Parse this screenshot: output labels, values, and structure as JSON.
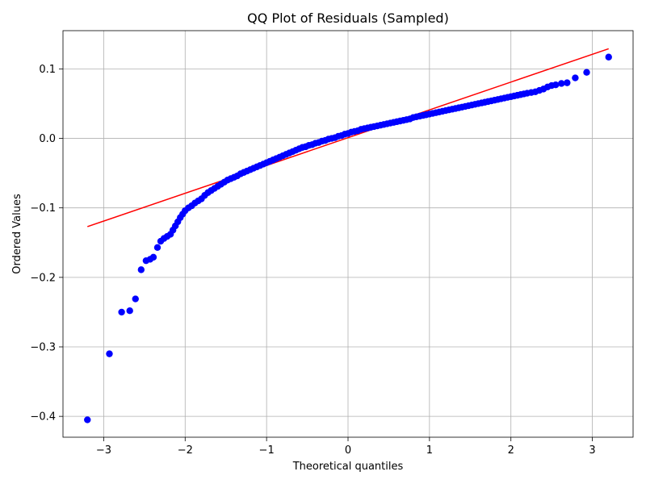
{
  "chart_data": {
    "type": "scatter",
    "title": "QQ Plot of Residuals (Sampled)",
    "xlabel": "Theoretical quantiles",
    "ylabel": "Ordered Values",
    "xlim": [
      -3.5,
      3.5
    ],
    "ylim": [
      -0.43,
      0.155
    ],
    "grid": true,
    "xticks": [
      -3,
      -2,
      -1,
      0,
      1,
      2,
      3
    ],
    "xtick_labels": [
      "−3",
      "−2",
      "−1",
      "0",
      "1",
      "2",
      "3"
    ],
    "yticks": [
      0.1,
      0.0,
      -0.1,
      -0.2,
      -0.3,
      -0.4
    ],
    "ytick_labels": [
      "0.1",
      "0.0",
      "−0.1",
      "−0.2",
      "−0.3",
      "−0.4"
    ],
    "colors": {
      "points": "#0000ff",
      "fit_line": "#ff0000"
    },
    "series": [
      {
        "role": "points",
        "marker": "circle",
        "points": [
          [
            -3.2,
            -0.405
          ],
          [
            -2.93,
            -0.31
          ],
          [
            -2.78,
            -0.25
          ],
          [
            -2.68,
            -0.248
          ],
          [
            -2.61,
            -0.231
          ],
          [
            -2.54,
            -0.189
          ],
          [
            -2.48,
            -0.176
          ],
          [
            -2.43,
            -0.174
          ],
          [
            -2.39,
            -0.171
          ],
          [
            -2.34,
            -0.157
          ],
          [
            -2.3,
            -0.148
          ],
          [
            -2.26,
            -0.144
          ],
          [
            -2.22,
            -0.141
          ],
          [
            -2.18,
            -0.138
          ],
          [
            -2.15,
            -0.132
          ],
          [
            -2.12,
            -0.126
          ],
          [
            -2.09,
            -0.12
          ],
          [
            -2.06,
            -0.114
          ],
          [
            -2.03,
            -0.109
          ],
          [
            -2.0,
            -0.104
          ],
          [
            -1.96,
            -0.1
          ],
          [
            -1.92,
            -0.097
          ],
          [
            -1.88,
            -0.093
          ],
          [
            -1.84,
            -0.09
          ],
          [
            -1.8,
            -0.087
          ],
          [
            -1.76,
            -0.082
          ],
          [
            -1.72,
            -0.078
          ],
          [
            -1.68,
            -0.075
          ],
          [
            -1.64,
            -0.072
          ],
          [
            -1.6,
            -0.069
          ],
          [
            -1.56,
            -0.066
          ],
          [
            -1.52,
            -0.063
          ],
          [
            -1.48,
            -0.06
          ],
          [
            -1.44,
            -0.058
          ],
          [
            -1.4,
            -0.056
          ],
          [
            -1.36,
            -0.054
          ],
          [
            -1.32,
            -0.051
          ],
          [
            -1.28,
            -0.049
          ],
          [
            -1.24,
            -0.047
          ],
          [
            -1.2,
            -0.045
          ],
          [
            -1.16,
            -0.043
          ],
          [
            -1.12,
            -0.041
          ],
          [
            -1.08,
            -0.039
          ],
          [
            -1.04,
            -0.037
          ],
          [
            -1.0,
            -0.035
          ],
          [
            -0.96,
            -0.033
          ],
          [
            -0.92,
            -0.031
          ],
          [
            -0.88,
            -0.029
          ],
          [
            -0.84,
            -0.027
          ],
          [
            -0.8,
            -0.025
          ],
          [
            -0.76,
            -0.023
          ],
          [
            -0.72,
            -0.021
          ],
          [
            -0.68,
            -0.019
          ],
          [
            -0.64,
            -0.017
          ],
          [
            -0.6,
            -0.015
          ],
          [
            -0.56,
            -0.013
          ],
          [
            -0.52,
            -0.012
          ],
          [
            -0.48,
            -0.01
          ],
          [
            -0.44,
            -0.009
          ],
          [
            -0.4,
            -0.007
          ],
          [
            -0.36,
            -0.006
          ],
          [
            -0.32,
            -0.004
          ],
          [
            -0.28,
            -0.003
          ],
          [
            -0.24,
            -0.001
          ],
          [
            -0.2,
            0.0
          ],
          [
            -0.16,
            0.001
          ],
          [
            -0.12,
            0.003
          ],
          [
            -0.08,
            0.004
          ],
          [
            -0.04,
            0.006
          ],
          [
            0.0,
            0.007
          ],
          [
            0.04,
            0.009
          ],
          [
            0.08,
            0.01
          ],
          [
            0.12,
            0.011
          ],
          [
            0.16,
            0.013
          ],
          [
            0.2,
            0.014
          ],
          [
            0.24,
            0.015
          ],
          [
            0.28,
            0.016
          ],
          [
            0.32,
            0.017
          ],
          [
            0.36,
            0.018
          ],
          [
            0.4,
            0.019
          ],
          [
            0.44,
            0.02
          ],
          [
            0.48,
            0.021
          ],
          [
            0.52,
            0.022
          ],
          [
            0.56,
            0.023
          ],
          [
            0.6,
            0.024
          ],
          [
            0.64,
            0.025
          ],
          [
            0.68,
            0.026
          ],
          [
            0.72,
            0.027
          ],
          [
            0.76,
            0.028
          ],
          [
            0.8,
            0.03
          ],
          [
            0.84,
            0.031
          ],
          [
            0.88,
            0.032
          ],
          [
            0.92,
            0.033
          ],
          [
            0.96,
            0.034
          ],
          [
            1.0,
            0.035
          ],
          [
            1.04,
            0.036
          ],
          [
            1.08,
            0.037
          ],
          [
            1.12,
            0.038
          ],
          [
            1.16,
            0.039
          ],
          [
            1.2,
            0.04
          ],
          [
            1.24,
            0.041
          ],
          [
            1.28,
            0.042
          ],
          [
            1.32,
            0.043
          ],
          [
            1.36,
            0.044
          ],
          [
            1.4,
            0.045
          ],
          [
            1.44,
            0.046
          ],
          [
            1.48,
            0.047
          ],
          [
            1.52,
            0.048
          ],
          [
            1.56,
            0.049
          ],
          [
            1.6,
            0.05
          ],
          [
            1.64,
            0.051
          ],
          [
            1.68,
            0.052
          ],
          [
            1.72,
            0.053
          ],
          [
            1.76,
            0.054
          ],
          [
            1.8,
            0.055
          ],
          [
            1.84,
            0.056
          ],
          [
            1.88,
            0.057
          ],
          [
            1.92,
            0.058
          ],
          [
            1.96,
            0.059
          ],
          [
            2.0,
            0.06
          ],
          [
            2.04,
            0.061
          ],
          [
            2.08,
            0.062
          ],
          [
            2.12,
            0.063
          ],
          [
            2.16,
            0.064
          ],
          [
            2.2,
            0.065
          ],
          [
            2.25,
            0.066
          ],
          [
            2.3,
            0.067
          ],
          [
            2.35,
            0.069
          ],
          [
            2.4,
            0.071
          ],
          [
            2.45,
            0.074
          ],
          [
            2.5,
            0.076
          ],
          [
            2.55,
            0.077
          ],
          [
            2.62,
            0.079
          ],
          [
            2.69,
            0.08
          ],
          [
            2.79,
            0.087
          ],
          [
            2.93,
            0.095
          ],
          [
            3.2,
            0.117
          ]
        ]
      },
      {
        "role": "fit_line",
        "line": [
          [
            -3.2,
            -0.127
          ],
          [
            3.2,
            0.129
          ]
        ]
      }
    ]
  }
}
